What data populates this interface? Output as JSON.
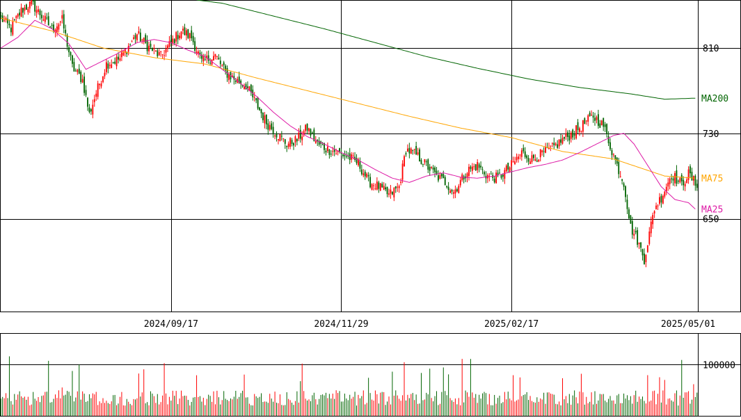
{
  "chart_data": [
    {
      "type": "candlestick",
      "panel": "price",
      "x_ticks": [
        "2024/09/17",
        "2024/11/29",
        "2025/02/17",
        "2025/05/01"
      ],
      "y_ticks": [
        810,
        730,
        650
      ],
      "ylim": [
        563,
        855
      ],
      "grid": true,
      "up_color": "#ff0000",
      "down_color": "#006400",
      "series_labels": [
        {
          "name": "MA200",
          "color": "#006400",
          "value": 763
        },
        {
          "name": "MA75",
          "color": "#ffa500",
          "value": 688
        },
        {
          "name": "MA25",
          "color": "#dd1aa6",
          "value": 659
        }
      ],
      "keypoints": {
        "close": [
          [
            0,
            838
          ],
          [
            6,
            828
          ],
          [
            12,
            845
          ],
          [
            18,
            852
          ],
          [
            24,
            840
          ],
          [
            30,
            828
          ],
          [
            36,
            836
          ],
          [
            42,
            792
          ],
          [
            48,
            780
          ],
          [
            52,
            748
          ],
          [
            56,
            768
          ],
          [
            62,
            795
          ],
          [
            70,
            800
          ],
          [
            80,
            823
          ],
          [
            86,
            812
          ],
          [
            94,
            802
          ],
          [
            100,
            815
          ],
          [
            106,
            826
          ],
          [
            112,
            820
          ],
          [
            118,
            797
          ],
          [
            126,
            803
          ],
          [
            132,
            787
          ],
          [
            138,
            780
          ],
          [
            144,
            775
          ],
          [
            150,
            758
          ],
          [
            156,
            740
          ],
          [
            162,
            730
          ],
          [
            168,
            720
          ],
          [
            174,
            724
          ],
          [
            180,
            735
          ],
          [
            186,
            720
          ],
          [
            192,
            715
          ],
          [
            198,
            712
          ],
          [
            204,
            708
          ],
          [
            210,
            702
          ],
          [
            216,
            685
          ],
          [
            222,
            680
          ],
          [
            228,
            672
          ],
          [
            234,
            680
          ],
          [
            238,
            715
          ],
          [
            244,
            710
          ],
          [
            250,
            700
          ],
          [
            256,
            690
          ],
          [
            262,
            683
          ],
          [
            266,
            675
          ],
          [
            274,
            695
          ],
          [
            280,
            700
          ],
          [
            286,
            690
          ],
          [
            292,
            688
          ],
          [
            300,
            700
          ],
          [
            306,
            712
          ],
          [
            312,
            706
          ],
          [
            318,
            711
          ],
          [
            324,
            716
          ],
          [
            330,
            724
          ],
          [
            336,
            730
          ],
          [
            342,
            738
          ],
          [
            348,
            746
          ],
          [
            354,
            737
          ],
          [
            362,
            700
          ],
          [
            366,
            684
          ],
          [
            370,
            642
          ],
          [
            374,
            630
          ],
          [
            378,
            612
          ],
          [
            384,
            660
          ],
          [
            388,
            670
          ],
          [
            394,
            692
          ],
          [
            400,
            682
          ],
          [
            404,
            692
          ],
          [
            408,
            683
          ]
        ],
        "MA25": [
          [
            0,
            810
          ],
          [
            10,
            820
          ],
          [
            20,
            836
          ],
          [
            30,
            828
          ],
          [
            40,
            814
          ],
          [
            50,
            790
          ],
          [
            60,
            798
          ],
          [
            70,
            806
          ],
          [
            80,
            815
          ],
          [
            90,
            818
          ],
          [
            100,
            815
          ],
          [
            110,
            808
          ],
          [
            120,
            802
          ],
          [
            130,
            790
          ],
          [
            140,
            778
          ],
          [
            150,
            765
          ],
          [
            160,
            750
          ],
          [
            170,
            737
          ],
          [
            180,
            727
          ],
          [
            190,
            720
          ],
          [
            200,
            712
          ],
          [
            210,
            705
          ],
          [
            220,
            696
          ],
          [
            230,
            688
          ],
          [
            240,
            684
          ],
          [
            250,
            690
          ],
          [
            260,
            693
          ],
          [
            270,
            689
          ],
          [
            280,
            688
          ],
          [
            290,
            690
          ],
          [
            300,
            694
          ],
          [
            310,
            698
          ],
          [
            320,
            701
          ],
          [
            330,
            705
          ],
          [
            340,
            712
          ],
          [
            350,
            720
          ],
          [
            360,
            728
          ],
          [
            366,
            730
          ],
          [
            372,
            720
          ],
          [
            380,
            700
          ],
          [
            388,
            680
          ],
          [
            396,
            668
          ],
          [
            404,
            665
          ],
          [
            408,
            659
          ]
        ],
        "MA75": [
          [
            0,
            838
          ],
          [
            30,
            826
          ],
          [
            60,
            810
          ],
          [
            90,
            801
          ],
          [
            120,
            795
          ],
          [
            150,
            782
          ],
          [
            180,
            770
          ],
          [
            210,
            758
          ],
          [
            240,
            746
          ],
          [
            270,
            735
          ],
          [
            300,
            726
          ],
          [
            330,
            713
          ],
          [
            360,
            706
          ],
          [
            390,
            690
          ],
          [
            408,
            688
          ]
        ],
        "MA200": [
          [
            115,
            855
          ],
          [
            130,
            852
          ],
          [
            160,
            840
          ],
          [
            190,
            828
          ],
          [
            220,
            815
          ],
          [
            250,
            802
          ],
          [
            280,
            791
          ],
          [
            310,
            781
          ],
          [
            340,
            773
          ],
          [
            370,
            767
          ],
          [
            390,
            762
          ],
          [
            408,
            763
          ]
        ]
      }
    },
    {
      "type": "bar",
      "panel": "volume",
      "y_ticks": [
        100000
      ],
      "ylim": [
        0,
        160000
      ],
      "grid": true,
      "up_color": "#ff0000",
      "down_color": "#006400"
    }
  ]
}
